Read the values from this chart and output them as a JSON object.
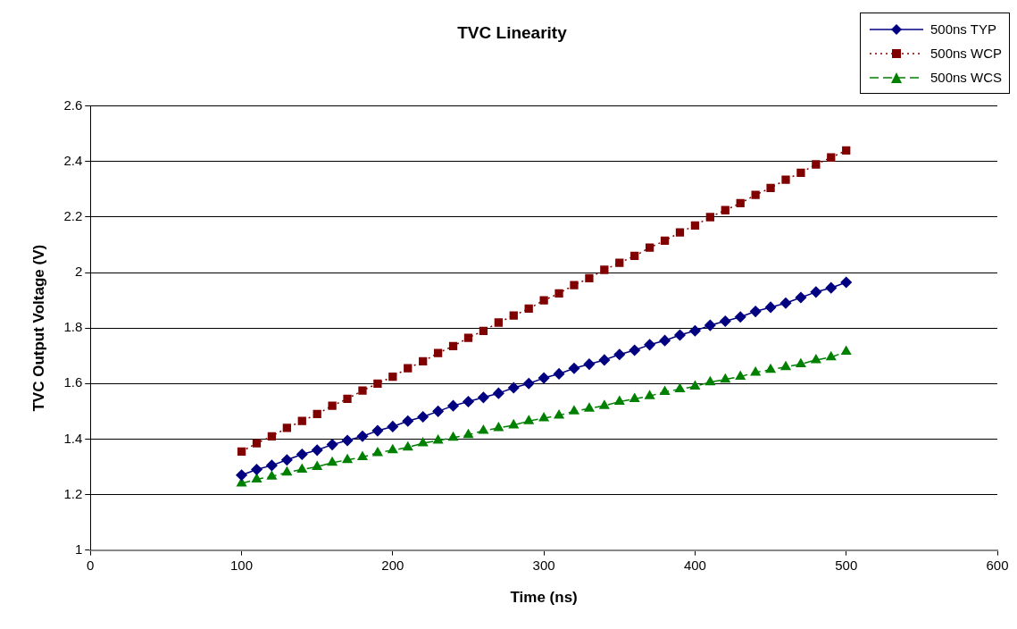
{
  "chart_data": {
    "type": "line",
    "title": "TVC Linearity",
    "xlabel": "Time (ns)",
    "ylabel": "TVC Output Voltage (V)",
    "x": [
      100,
      110,
      120,
      130,
      140,
      150,
      160,
      170,
      180,
      190,
      200,
      210,
      220,
      230,
      240,
      250,
      260,
      270,
      280,
      290,
      300,
      310,
      320,
      330,
      340,
      350,
      360,
      370,
      380,
      390,
      400,
      410,
      420,
      430,
      440,
      450,
      460,
      470,
      480,
      490,
      500
    ],
    "series": [
      {
        "name": "500ns TYP",
        "color": "#000080",
        "marker": "diamond",
        "line_style": "solid",
        "values": [
          1.27,
          1.29,
          1.305,
          1.325,
          1.345,
          1.36,
          1.38,
          1.395,
          1.41,
          1.43,
          1.445,
          1.465,
          1.48,
          1.5,
          1.52,
          1.535,
          1.55,
          1.565,
          1.585,
          1.6,
          1.62,
          1.635,
          1.655,
          1.67,
          1.685,
          1.705,
          1.72,
          1.74,
          1.755,
          1.775,
          1.79,
          1.81,
          1.825,
          1.84,
          1.86,
          1.875,
          1.89,
          1.91,
          1.93,
          1.945,
          1.965
        ]
      },
      {
        "name": "500ns WCP",
        "color": "#800000",
        "marker": "square",
        "line_style": "dotted",
        "values": [
          1.355,
          1.385,
          1.41,
          1.44,
          1.465,
          1.49,
          1.52,
          1.545,
          1.575,
          1.6,
          1.625,
          1.655,
          1.68,
          1.71,
          1.735,
          1.765,
          1.79,
          1.82,
          1.845,
          1.87,
          1.9,
          1.925,
          1.955,
          1.98,
          2.01,
          2.035,
          2.06,
          2.09,
          2.115,
          2.145,
          2.17,
          2.2,
          2.225,
          2.25,
          2.28,
          2.305,
          2.335,
          2.36,
          2.39,
          2.415,
          2.44
        ]
      },
      {
        "name": "500ns WCS",
        "color": "#008000",
        "marker": "triangle",
        "line_style": "dashed",
        "values": [
          1.24,
          1.255,
          1.265,
          1.28,
          1.29,
          1.3,
          1.315,
          1.325,
          1.335,
          1.35,
          1.36,
          1.37,
          1.385,
          1.395,
          1.405,
          1.415,
          1.43,
          1.44,
          1.45,
          1.465,
          1.475,
          1.485,
          1.5,
          1.51,
          1.52,
          1.535,
          1.545,
          1.555,
          1.57,
          1.58,
          1.59,
          1.605,
          1.615,
          1.625,
          1.64,
          1.65,
          1.66,
          1.67,
          1.685,
          1.695,
          1.715
        ]
      }
    ],
    "xlim": [
      0,
      600
    ],
    "xticks": [
      0,
      100,
      200,
      300,
      400,
      500,
      600
    ],
    "ylim": [
      1,
      2.6
    ],
    "yticks": [
      1,
      1.2,
      1.4,
      1.6,
      1.8,
      2,
      2.2,
      2.4,
      2.6
    ],
    "grid": "y",
    "legend": "top right"
  }
}
